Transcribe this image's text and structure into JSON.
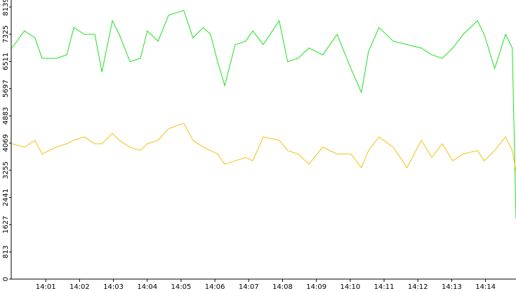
{
  "chart_data": {
    "type": "line",
    "x": [
      840.0,
      840.37,
      840.68,
      840.89,
      841.31,
      841.62,
      841.83,
      842.14,
      842.45,
      842.66,
      842.97,
      843.17,
      843.49,
      843.8,
      844.0,
      844.32,
      844.63,
      845.08,
      845.35,
      845.66,
      845.87,
      846.08,
      846.29,
      846.6,
      846.91,
      847.12,
      847.43,
      847.9,
      848.15,
      848.46,
      848.78,
      849.19,
      849.61,
      850.02,
      850.33,
      850.54,
      850.85,
      851.27,
      851.68,
      852.1,
      852.41,
      852.72,
      853.03,
      853.34,
      853.76,
      853.96,
      854.27,
      854.59,
      854.79,
      854.9
    ],
    "series": [
      {
        "color": "#1ee01e",
        "values": [
          6912,
          7423,
          7219,
          6605,
          6605,
          6708,
          7526,
          7321,
          7321,
          6196,
          7730,
          7321,
          6503,
          6605,
          7423,
          7117,
          7894,
          8037,
          7219,
          7526,
          7321,
          6503,
          5787,
          7014,
          7117,
          7423,
          7014,
          7730,
          6503,
          6605,
          6912,
          6708,
          7321,
          6299,
          5583,
          6810,
          7526,
          7117,
          7014,
          6912,
          6708,
          6605,
          6912,
          7321,
          7730,
          7321,
          6299,
          7321,
          6912,
          1800
        ]
      },
      {
        "color": "#f2c010",
        "values": [
          4049,
          3947,
          4151,
          3742,
          3947,
          4049,
          4151,
          4254,
          4049,
          4049,
          4356,
          4151,
          3947,
          3845,
          4049,
          4151,
          4499,
          4663,
          4151,
          3947,
          3845,
          3742,
          3436,
          3538,
          3640,
          3538,
          4254,
          4151,
          3845,
          3742,
          3436,
          3947,
          3742,
          3742,
          3333,
          3845,
          4254,
          3947,
          3333,
          4151,
          3640,
          4049,
          3538,
          3742,
          3845,
          3538,
          3845,
          4254,
          3845,
          3231
        ]
      }
    ],
    "xlim": [
      840,
      854.9
    ],
    "xticks": [
      {
        "value": 841,
        "label": "14:01"
      },
      {
        "value": 842,
        "label": "14:02"
      },
      {
        "value": 843,
        "label": "14:03"
      },
      {
        "value": 844,
        "label": "14:04"
      },
      {
        "value": 845,
        "label": "14:05"
      },
      {
        "value": 846,
        "label": "14:06"
      },
      {
        "value": 847,
        "label": "14:07"
      },
      {
        "value": 848,
        "label": "14:08"
      },
      {
        "value": 849,
        "label": "14:09"
      },
      {
        "value": 850,
        "label": "14:10"
      },
      {
        "value": 851,
        "label": "14:11"
      },
      {
        "value": 852,
        "label": "14:12"
      },
      {
        "value": 853,
        "label": "14:13"
      },
      {
        "value": 854,
        "label": "14:14"
      }
    ],
    "ylim": [
      0,
      8139
    ],
    "yticks": [
      0,
      813,
      1627,
      2441,
      3255,
      4069,
      4883,
      5697,
      6511,
      7325,
      8139
    ]
  }
}
